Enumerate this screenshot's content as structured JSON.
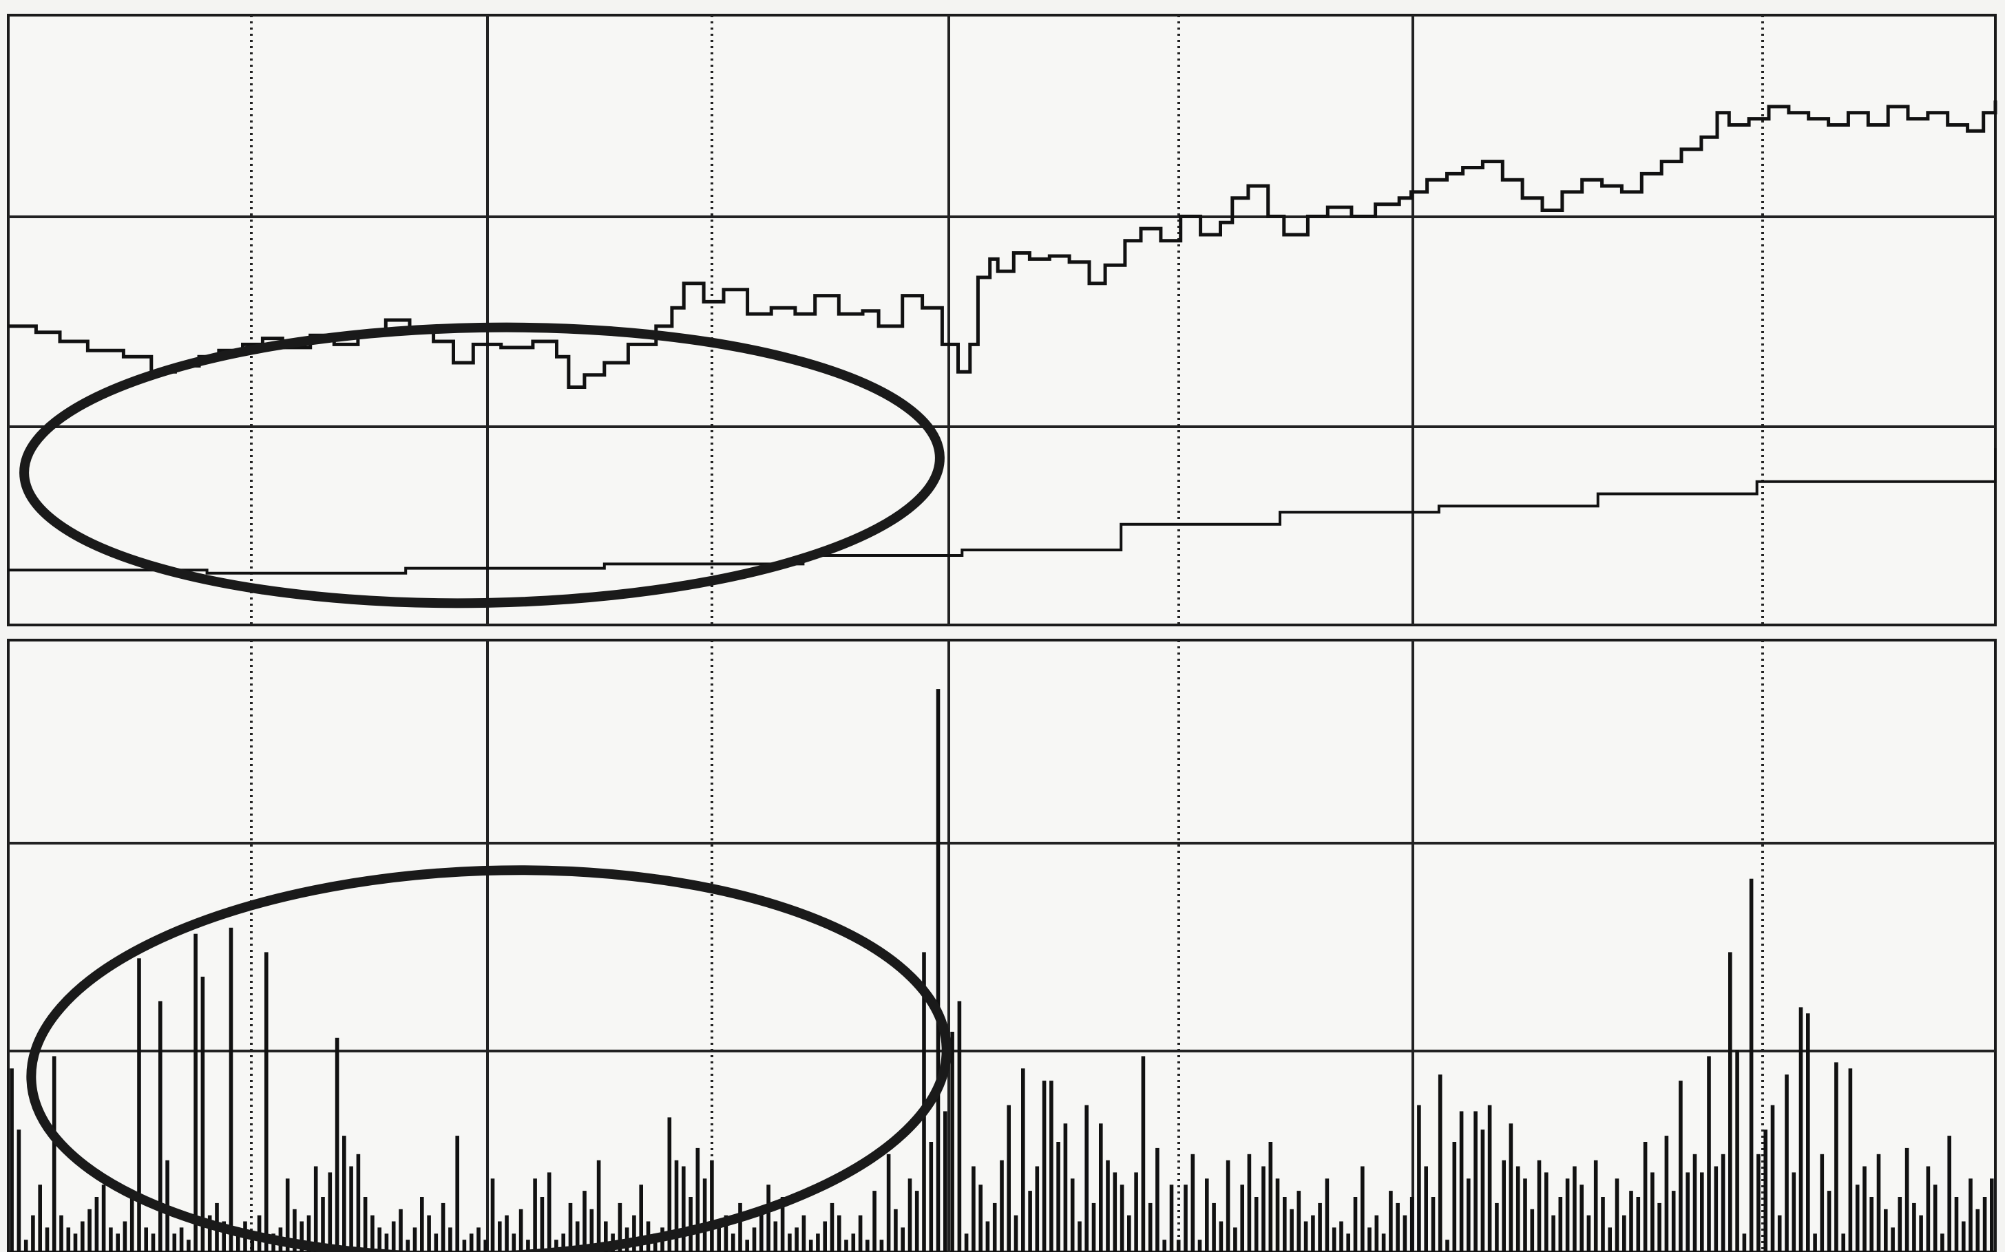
{
  "chart_data": [
    {
      "type": "line",
      "title": "",
      "xlabel": "",
      "ylabel": "",
      "grid": true,
      "x_range": [
        0,
        100
      ],
      "y_range": [
        0,
        100
      ],
      "series": [
        {
          "role": "price",
          "color": "#111111",
          "points": [
            [
              0,
              49
            ],
            [
              1.4,
              48
            ],
            [
              2.6,
              46.5
            ],
            [
              4,
              45
            ],
            [
              5.8,
              44
            ],
            [
              7.2,
              41.5
            ],
            [
              8.4,
              42.5
            ],
            [
              9.6,
              44
            ],
            [
              10.6,
              45
            ],
            [
              11.8,
              46
            ],
            [
              12.8,
              47
            ],
            [
              13.8,
              45.5
            ],
            [
              15.2,
              47.5
            ],
            [
              16.4,
              46
            ],
            [
              17.6,
              48
            ],
            [
              19,
              50
            ],
            [
              20.2,
              48
            ],
            [
              21.4,
              46.5
            ],
            [
              22.4,
              43
            ],
            [
              23.4,
              46
            ],
            [
              24.8,
              45.5
            ],
            [
              26.4,
              46.5
            ],
            [
              27.6,
              44
            ],
            [
              28.2,
              39
            ],
            [
              29,
              41
            ],
            [
              30,
              43
            ],
            [
              31.2,
              46
            ],
            [
              32.6,
              49
            ],
            [
              33.4,
              52
            ],
            [
              34,
              56
            ],
            [
              35,
              53
            ],
            [
              36,
              55
            ],
            [
              37.2,
              51
            ],
            [
              38.4,
              52
            ],
            [
              39.6,
              51
            ],
            [
              40.6,
              54
            ],
            [
              41.8,
              51
            ],
            [
              43,
              51.5
            ],
            [
              43.8,
              49
            ],
            [
              45,
              54
            ],
            [
              46,
              52
            ],
            [
              47,
              46
            ],
            [
              47.8,
              41.5
            ],
            [
              48.4,
              46
            ],
            [
              48.8,
              57
            ],
            [
              49.4,
              60
            ],
            [
              49.8,
              58
            ],
            [
              50.6,
              61
            ],
            [
              51.4,
              60
            ],
            [
              52.4,
              60.5
            ],
            [
              53.4,
              59.5
            ],
            [
              54.4,
              56
            ],
            [
              55.2,
              59
            ],
            [
              56.2,
              63
            ],
            [
              57,
              65
            ],
            [
              58,
              63
            ],
            [
              59,
              67
            ],
            [
              60,
              64
            ],
            [
              61,
              66
            ],
            [
              61.6,
              70
            ],
            [
              62.4,
              72
            ],
            [
              63.4,
              67
            ],
            [
              64.2,
              64
            ],
            [
              65.4,
              67
            ],
            [
              66.4,
              68.5
            ],
            [
              67.6,
              67
            ],
            [
              68.8,
              69
            ],
            [
              70,
              70
            ],
            [
              70.6,
              71
            ],
            [
              71.4,
              73
            ],
            [
              72.4,
              74
            ],
            [
              73.2,
              75
            ],
            [
              74.2,
              76
            ],
            [
              75.2,
              73
            ],
            [
              76.2,
              70
            ],
            [
              77.2,
              68
            ],
            [
              78.2,
              71
            ],
            [
              79.2,
              73
            ],
            [
              80.2,
              72
            ],
            [
              81.2,
              71
            ],
            [
              82.2,
              74
            ],
            [
              83.2,
              76
            ],
            [
              84.2,
              78
            ],
            [
              85.2,
              80
            ],
            [
              86,
              84
            ],
            [
              86.6,
              82
            ],
            [
              87.6,
              83
            ],
            [
              88.6,
              85
            ],
            [
              89.6,
              84
            ],
            [
              90.6,
              83
            ],
            [
              91.6,
              82
            ],
            [
              92.6,
              84
            ],
            [
              93.6,
              82
            ],
            [
              94.6,
              85
            ],
            [
              95.6,
              83
            ],
            [
              96.6,
              84
            ],
            [
              97.6,
              82
            ],
            [
              98.6,
              81
            ],
            [
              99.4,
              84
            ],
            [
              100,
              86
            ]
          ]
        },
        {
          "role": "moving_average",
          "color": "#111111",
          "points": [
            [
              0,
              9
            ],
            [
              10,
              8.5
            ],
            [
              20,
              9.3
            ],
            [
              30,
              10
            ],
            [
              40,
              11.4
            ],
            [
              48,
              12.3
            ],
            [
              56,
              16.5
            ],
            [
              64,
              18.5
            ],
            [
              72,
              19.5
            ],
            [
              80,
              21.5
            ],
            [
              88,
              23.5
            ],
            [
              100,
              29
            ]
          ]
        }
      ]
    },
    {
      "type": "bar",
      "title": "",
      "xlabel": "",
      "ylabel": "",
      "grid": true,
      "x_range": [
        0,
        100
      ],
      "y_range": [
        0,
        100
      ],
      "bar_color": "#111111",
      "values": [
        30,
        20,
        2,
        6,
        11,
        4,
        32,
        6,
        4,
        3,
        5,
        7,
        9,
        11,
        4,
        3,
        5,
        9,
        48,
        4,
        3,
        41,
        15,
        3,
        4,
        2,
        52,
        45,
        6,
        8,
        5,
        53,
        4,
        5,
        3,
        6,
        49,
        3,
        4,
        12,
        7,
        5,
        6,
        14,
        9,
        13,
        35,
        19,
        14,
        16,
        9,
        6,
        4,
        3,
        5,
        7,
        2,
        4,
        9,
        6,
        3,
        8,
        4,
        19,
        2,
        3,
        4,
        2,
        12,
        5,
        6,
        3,
        7,
        2,
        12,
        9,
        13,
        2,
        3,
        8,
        5,
        10,
        7,
        15,
        5,
        3,
        8,
        4,
        6,
        11,
        5,
        3,
        4,
        22,
        15,
        14,
        9,
        17,
        12,
        15,
        4,
        6,
        3,
        8,
        2,
        4,
        7,
        11,
        5,
        9,
        3,
        4,
        6,
        2,
        3,
        5,
        8,
        6,
        2,
        3,
        6,
        2,
        10,
        2,
        16,
        7,
        4,
        12,
        10,
        49,
        18,
        92,
        23,
        36,
        41,
        3,
        14,
        11,
        5,
        8,
        15,
        24,
        6,
        30,
        10,
        14,
        28,
        28,
        18,
        21,
        12,
        5,
        24,
        8,
        21,
        15,
        13,
        11,
        6,
        13,
        32,
        8,
        17,
        2,
        11,
        2,
        11,
        16,
        2,
        12,
        8,
        5,
        15,
        4,
        11,
        16,
        9,
        14,
        18,
        12,
        9,
        7,
        10,
        5,
        6,
        8,
        12,
        4,
        5,
        3,
        9,
        14,
        4,
        6,
        3,
        10,
        8,
        6,
        9,
        24,
        14,
        9,
        29,
        2,
        18,
        23,
        12,
        23,
        20,
        24,
        8,
        15,
        21,
        14,
        12,
        7,
        15,
        13,
        6,
        9,
        12,
        14,
        11,
        6,
        15,
        9,
        4,
        12,
        6,
        10,
        9,
        18,
        13,
        8,
        19,
        10,
        28,
        13,
        16,
        13,
        32,
        14,
        16,
        49,
        33,
        3,
        61,
        16,
        20,
        24,
        6,
        29,
        13,
        40,
        39,
        3,
        16,
        10,
        31,
        3,
        30,
        11,
        14,
        9,
        16,
        7,
        4,
        9,
        17,
        8,
        6,
        14,
        11,
        3,
        19,
        9,
        5,
        12,
        7,
        9,
        12
      ],
      "ellipse_annotation": true
    }
  ]
}
